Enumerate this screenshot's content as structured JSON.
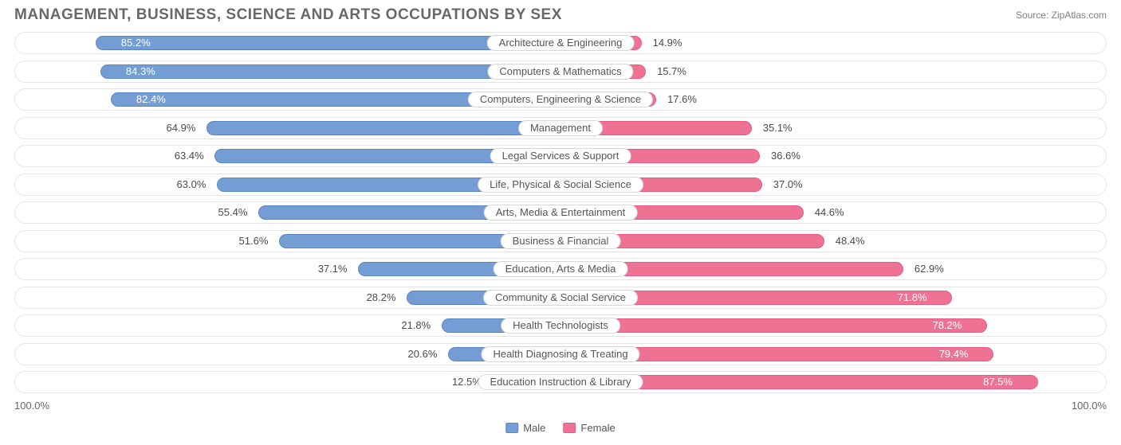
{
  "title": "MANAGEMENT, BUSINESS, SCIENCE AND ARTS OCCUPATIONS BY SEX",
  "source": "Source: ZipAtlas.com",
  "chart": {
    "type": "diverging-bar",
    "background_color": "#ffffff",
    "track_border_color": "#e4e4e4",
    "label_pill_border": "#d8d8d8",
    "label_fontsize": 13,
    "title_fontsize": 19,
    "title_color": "#686868",
    "source_fontsize": 12,
    "male": {
      "fill": "#739dd3",
      "border": "#5a87c2",
      "legend_label": "Male"
    },
    "female": {
      "fill": "#ee7294",
      "border": "#e85a82",
      "legend_label": "Female"
    },
    "axis": {
      "left_label": "100.0%",
      "right_label": "100.0%"
    },
    "categories": [
      {
        "label": "Architecture & Engineering",
        "male_pct": 85.2,
        "female_pct": 14.9,
        "male_text": "85.2%",
        "female_text": "14.9%"
      },
      {
        "label": "Computers & Mathematics",
        "male_pct": 84.3,
        "female_pct": 15.7,
        "male_text": "84.3%",
        "female_text": "15.7%"
      },
      {
        "label": "Computers, Engineering & Science",
        "male_pct": 82.4,
        "female_pct": 17.6,
        "male_text": "82.4%",
        "female_text": "17.6%"
      },
      {
        "label": "Management",
        "male_pct": 64.9,
        "female_pct": 35.1,
        "male_text": "64.9%",
        "female_text": "35.1%"
      },
      {
        "label": "Legal Services & Support",
        "male_pct": 63.4,
        "female_pct": 36.6,
        "male_text": "63.4%",
        "female_text": "36.6%"
      },
      {
        "label": "Life, Physical & Social Science",
        "male_pct": 63.0,
        "female_pct": 37.0,
        "male_text": "63.0%",
        "female_text": "37.0%"
      },
      {
        "label": "Arts, Media & Entertainment",
        "male_pct": 55.4,
        "female_pct": 44.6,
        "male_text": "55.4%",
        "female_text": "44.6%"
      },
      {
        "label": "Business & Financial",
        "male_pct": 51.6,
        "female_pct": 48.4,
        "male_text": "51.6%",
        "female_text": "48.4%"
      },
      {
        "label": "Education, Arts & Media",
        "male_pct": 37.1,
        "female_pct": 62.9,
        "male_text": "37.1%",
        "female_text": "62.9%"
      },
      {
        "label": "Community & Social Service",
        "male_pct": 28.2,
        "female_pct": 71.8,
        "male_text": "28.2%",
        "female_text": "71.8%"
      },
      {
        "label": "Health Technologists",
        "male_pct": 21.8,
        "female_pct": 78.2,
        "male_text": "21.8%",
        "female_text": "78.2%"
      },
      {
        "label": "Health Diagnosing & Treating",
        "male_pct": 20.6,
        "female_pct": 79.4,
        "male_text": "20.6%",
        "female_text": "79.4%"
      },
      {
        "label": "Education Instruction & Library",
        "male_pct": 12.5,
        "female_pct": 87.5,
        "male_text": "12.5%",
        "female_text": "87.5%"
      }
    ]
  }
}
